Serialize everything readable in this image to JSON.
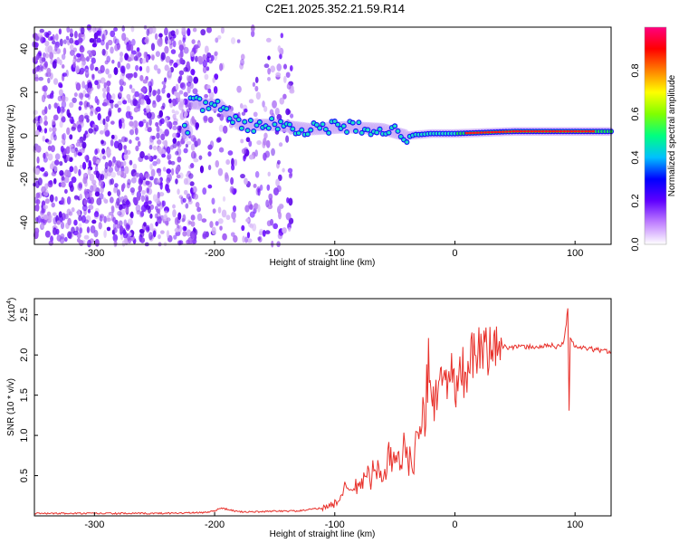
{
  "title": "C2E1.2025.352.21.59.R14",
  "chart_data": [
    {
      "type": "heatmap",
      "title": "C2E1.2025.352.21.59.R14",
      "xlabel": "Height of straight line (km)",
      "ylabel": "Frequency (Hz)",
      "xlim": [
        -350,
        130
      ],
      "ylim": [
        -50,
        50
      ],
      "x_ticks": [
        -300,
        -200,
        -100,
        0,
        100
      ],
      "y_ticks": [
        -40,
        -20,
        0,
        20,
        40
      ],
      "colorbar": {
        "label": "Normalized spectral amplitude",
        "range": [
          0,
          1
        ],
        "ticks": [
          0.0,
          0.2,
          0.4,
          0.6,
          0.8
        ],
        "tick_labels": [
          "0.0",
          "0.2",
          "0.4",
          "0.6",
          "0.8"
        ],
        "colors": [
          "#ffffff",
          "#c080ff",
          "#6000ff",
          "#0000ff",
          "#00c0ff",
          "#00ff80",
          "#80ff00",
          "#ffff00",
          "#ff8000",
          "#ff0000",
          "#ff0080"
        ]
      },
      "ridge": {
        "description_points": [
          {
            "x": -220,
            "y": 15
          },
          {
            "x": -195,
            "y": 14
          },
          {
            "x": -180,
            "y": 5
          },
          {
            "x": -150,
            "y": 5
          },
          {
            "x": -120,
            "y": 3
          },
          {
            "x": -90,
            "y": 4
          },
          {
            "x": -60,
            "y": 3
          },
          {
            "x": -40,
            "y": 0
          },
          {
            "x": -20,
            "y": 1
          },
          {
            "x": 0,
            "y": 1
          },
          {
            "x": 50,
            "y": 2
          },
          {
            "x": 90,
            "y": 2
          },
          {
            "x": 130,
            "y": 2
          }
        ]
      }
    },
    {
      "type": "line",
      "xlabel": "Height of straight line (km)",
      "ylabel": "SNR (10 * v/v)",
      "y_scale_label": "(x10",
      "y_scale_exp": "4",
      "xlim": [
        -350,
        130
      ],
      "ylim": [
        0,
        2.7
      ],
      "x_ticks": [
        -300,
        -200,
        -100,
        0,
        100
      ],
      "y_ticks": [
        0.5,
        1.0,
        1.5,
        2.0,
        2.5
      ],
      "y_tick_labels": [
        "0.5",
        "1.0",
        "1.5",
        "2.0",
        "2.5"
      ],
      "color": "#e8302a",
      "series": [
        {
          "name": "SNR",
          "x": [
            -350,
            -300,
            -250,
            -210,
            -200,
            -195,
            -180,
            -160,
            -150,
            -130,
            -110,
            -100,
            -95,
            -90,
            -85,
            -80,
            -75,
            -70,
            -65,
            -60,
            -55,
            -50,
            -45,
            -40,
            -35,
            -30,
            -25,
            -22,
            -20,
            -18,
            -15,
            -12,
            -10,
            -8,
            -5,
            -2,
            0,
            5,
            10,
            15,
            20,
            25,
            30,
            40,
            50,
            60,
            70,
            80,
            85,
            90,
            92,
            94,
            95,
            96,
            100,
            110,
            120,
            130
          ],
          "y": [
            0.03,
            0.03,
            0.03,
            0.04,
            0.06,
            0.1,
            0.05,
            0.05,
            0.06,
            0.06,
            0.1,
            0.15,
            0.25,
            0.35,
            0.3,
            0.4,
            0.45,
            0.5,
            0.55,
            0.6,
            0.7,
            0.6,
            0.75,
            0.8,
            0.7,
            1.0,
            1.2,
            1.9,
            1.3,
            1.5,
            1.6,
            1.8,
            1.5,
            1.7,
            1.9,
            1.6,
            1.5,
            1.7,
            1.85,
            1.95,
            2.0,
            2.05,
            2.08,
            2.1,
            2.1,
            2.1,
            2.1,
            2.12,
            2.1,
            2.15,
            2.3,
            2.6,
            1.3,
            2.2,
            2.1,
            2.08,
            2.06,
            2.04
          ]
        }
      ]
    }
  ]
}
